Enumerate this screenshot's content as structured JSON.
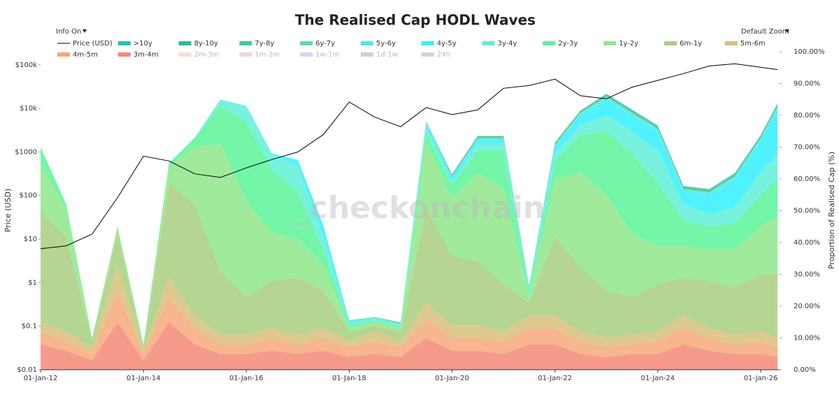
{
  "chart_data": {
    "type": "area",
    "title": "The Realised Cap HODL Waves",
    "menu_left": "Info On",
    "menu_right": "Default Zoom",
    "watermark": "_checkonchain",
    "ylabel": "Price (USD)",
    "y2label": "Proportion of Realised Cap (%)",
    "log_y": true,
    "x": [
      "2012-01-01",
      "2012-07-01",
      "2013-01-01",
      "2013-07-01",
      "2014-01-01",
      "2014-07-01",
      "2015-01-01",
      "2015-07-01",
      "2016-01-01",
      "2016-07-01",
      "2017-01-01",
      "2017-07-01",
      "2018-01-01",
      "2018-07-01",
      "2019-01-01",
      "2019-07-01",
      "2020-01-01",
      "2020-07-01",
      "2021-01-01",
      "2021-07-01",
      "2022-01-01",
      "2022-07-01",
      "2023-01-01",
      "2023-07-01",
      "2024-01-01",
      "2024-07-01",
      "2025-01-01",
      "2025-07-01",
      "2026-01-01",
      "2026-05-01"
    ],
    "xlim": [
      "2012-01-01",
      "2026-05-15"
    ],
    "xticks": [
      {
        "value": "2012-01-01",
        "label": "01-Jan-12"
      },
      {
        "value": "2014-01-01",
        "label": "01-Jan-14"
      },
      {
        "value": "2016-01-01",
        "label": "01-Jan-16"
      },
      {
        "value": "2018-01-01",
        "label": "01-Jan-18"
      },
      {
        "value": "2020-01-01",
        "label": "01-Jan-20"
      },
      {
        "value": "2022-01-01",
        "label": "01-Jan-22"
      },
      {
        "value": "2024-01-01",
        "label": "01-Jan-24"
      },
      {
        "value": "2026-01-01",
        "label": "01-Jan-26"
      }
    ],
    "ylim": [
      0.01,
      200000
    ],
    "yticks": [
      {
        "value": 0.01,
        "label": "$0.01"
      },
      {
        "value": 0.1,
        "label": "$0.1"
      },
      {
        "value": 1,
        "label": "$1"
      },
      {
        "value": 10,
        "label": "$10"
      },
      {
        "value": 100,
        "label": "$100"
      },
      {
        "value": 1000,
        "label": "$1000"
      },
      {
        "value": 10000,
        "label": "$10k"
      },
      {
        "value": 100000,
        "label": "$100k"
      }
    ],
    "y2lim": [
      0,
      100
    ],
    "y2ticks": [
      {
        "value": 0,
        "label": "0.00%"
      },
      {
        "value": 10,
        "label": "10.00%"
      },
      {
        "value": 20,
        "label": "20.00%"
      },
      {
        "value": 30,
        "label": "30.00%"
      },
      {
        "value": 40,
        "label": "40.00%"
      },
      {
        "value": 50,
        "label": "50.00%"
      },
      {
        "value": 60,
        "label": "60.00%"
      },
      {
        "value": 70,
        "label": "70.00%"
      },
      {
        "value": 80,
        "label": "80.00%"
      },
      {
        "value": 90,
        "label": "90.00%"
      },
      {
        "value": 100,
        "label": "100.00%"
      }
    ],
    "series": [
      {
        "name": "Price (USD)",
        "color": "#000000",
        "axis": "y",
        "values": [
          6,
          7,
          13,
          90,
          800,
          620,
          315,
          260,
          430,
          670,
          1000,
          2500,
          14000,
          6300,
          3800,
          10500,
          7200,
          9200,
          29000,
          33500,
          47000,
          19500,
          16600,
          30500,
          44000,
          63000,
          94000,
          106000,
          88000,
          78000
        ]
      },
      {
        "name": ">10y",
        "color": "#26bfbf",
        "axis": "y2",
        "values": [
          0,
          0,
          0,
          0,
          0,
          0,
          0,
          0,
          0,
          0,
          0,
          0,
          0,
          0,
          0,
          0,
          0,
          0,
          0,
          0,
          0,
          0,
          0.3,
          0.3,
          0.3,
          0.3,
          0.3,
          0.3,
          0.3,
          0.3
        ]
      },
      {
        "name": "8y-10y",
        "color": "#2dc08a",
        "axis": "y2",
        "values": [
          0,
          0,
          0,
          0,
          0,
          0,
          0,
          0,
          0,
          0,
          0,
          0,
          0,
          0,
          0,
          0,
          0.4,
          0.4,
          0.4,
          0.4,
          0.4,
          0.4,
          0.4,
          0.4,
          0.4,
          0.4,
          0.4,
          0.4,
          0.4,
          0.4
        ]
      },
      {
        "name": "7y-8y",
        "color": "#3acc8f",
        "axis": "y2",
        "values": [
          0,
          0,
          0,
          0,
          0,
          0,
          0,
          0,
          0,
          0,
          0,
          0,
          0,
          0,
          0.3,
          0.3,
          0.3,
          0.3,
          0.3,
          0.3,
          0.3,
          0.3,
          0.3,
          0.3,
          0.3,
          0.3,
          0.3,
          0.3,
          0.3,
          0.3
        ]
      },
      {
        "name": "6y-7y",
        "color": "#5fdcb0",
        "axis": "y2",
        "values": [
          0,
          0,
          0,
          0,
          0,
          0,
          0,
          0,
          0,
          0,
          0,
          0,
          0.3,
          0.3,
          0.3,
          0.3,
          0.3,
          0.3,
          0.3,
          0.3,
          0.3,
          0.3,
          0.3,
          0.3,
          0.3,
          0.3,
          0.3,
          0.3,
          0.3,
          0.3
        ]
      },
      {
        "name": "5y-6y",
        "color": "#4de8e8",
        "axis": "y2",
        "values": [
          0,
          0,
          0,
          0,
          0,
          0,
          0,
          0,
          0,
          0,
          0,
          0.5,
          0.3,
          0.3,
          0.3,
          0.5,
          0.5,
          0.5,
          0.5,
          0.3,
          0.5,
          0.5,
          0.5,
          0.5,
          0.5,
          0.5,
          0.5,
          0.5,
          0.5,
          0.5
        ]
      },
      {
        "name": "4y-5y",
        "color": "#33f0ff",
        "axis": "y2",
        "values": [
          0,
          0,
          0,
          0,
          0,
          0,
          0,
          0,
          0,
          0,
          2,
          3,
          0.5,
          0,
          0,
          1,
          1,
          1,
          1,
          0.5,
          2,
          3,
          5,
          5,
          6,
          4,
          6,
          9,
          10,
          14
        ]
      },
      {
        "name": "3y-4y",
        "color": "#5ff0d8",
        "axis": "y2",
        "values": [
          0,
          0,
          0,
          0,
          0,
          0,
          0,
          2,
          5,
          5,
          8,
          4,
          0.5,
          0.5,
          0.5,
          1,
          1,
          2,
          2,
          0.5,
          2,
          3,
          5,
          7,
          10,
          5,
          4,
          5,
          7,
          8
        ]
      },
      {
        "name": "2y-3y",
        "color": "#5cf59a",
        "axis": "y2",
        "values": [
          5,
          2,
          0,
          0,
          0,
          1,
          3,
          12,
          25,
          20,
          15,
          5,
          1,
          0.5,
          0.5,
          4,
          4,
          7,
          12,
          1,
          6,
          12,
          20,
          25,
          20,
          8,
          7,
          8,
          10,
          12
        ]
      },
      {
        "name": "1y-2y",
        "color": "#8ee88a",
        "axis": "y2",
        "values": [
          15,
          8,
          1,
          2,
          1,
          5,
          18,
          40,
          30,
          15,
          12,
          8,
          1,
          1,
          1,
          20,
          18,
          28,
          30,
          2,
          18,
          30,
          30,
          20,
          12,
          10,
          10,
          12,
          15,
          18
        ]
      },
      {
        "name": "6m-1y",
        "color": "#a8cf80",
        "axis": "y2",
        "values": [
          35,
          30,
          2,
          10,
          1,
          30,
          35,
          20,
          12,
          15,
          18,
          12,
          3,
          2,
          3,
          30,
          22,
          20,
          15,
          4,
          25,
          20,
          15,
          12,
          15,
          12,
          15,
          15,
          18,
          20
        ]
      },
      {
        "name": "5m-6m",
        "color": "#d8c07a",
        "axis": "y2",
        "values": [
          3,
          3,
          2,
          8,
          1,
          6,
          4,
          3,
          3,
          3,
          3,
          3,
          2,
          3,
          2,
          5,
          4,
          4,
          3,
          4,
          4,
          3,
          3,
          3,
          3,
          4,
          3,
          3,
          3,
          3
        ]
      },
      {
        "name": "4m-5m",
        "color": "#f7a97a",
        "axis": "y2",
        "values": [
          4,
          3,
          2,
          10,
          2,
          8,
          5,
          3,
          3,
          4,
          3,
          4,
          3,
          4,
          3,
          6,
          4,
          4,
          4,
          5,
          5,
          4,
          3,
          3,
          4,
          5,
          4,
          3,
          4,
          3
        ]
      },
      {
        "name": "3m-4m",
        "color": "#f48a78",
        "axis": "y2",
        "values": [
          8,
          6,
          3,
          15,
          3,
          15,
          8,
          5,
          5,
          6,
          5,
          6,
          4,
          5,
          4,
          10,
          6,
          6,
          5,
          8,
          8,
          5,
          4,
          5,
          5,
          8,
          6,
          5,
          5,
          4
        ]
      },
      {
        "name": "2m-3m",
        "color": "#f5b8b0",
        "axis": "y2",
        "visible": false
      },
      {
        "name": "1m-2m",
        "color": "#e8a8c8",
        "axis": "y2",
        "visible": false
      },
      {
        "name": "1w-1m",
        "color": "#c0a8e0",
        "axis": "y2",
        "visible": false
      },
      {
        "name": "1d-1w",
        "color": "#a898c0",
        "axis": "y2",
        "visible": false
      },
      {
        "name": "24h",
        "color": "#b8a0a8",
        "axis": "y2",
        "visible": false
      }
    ]
  }
}
